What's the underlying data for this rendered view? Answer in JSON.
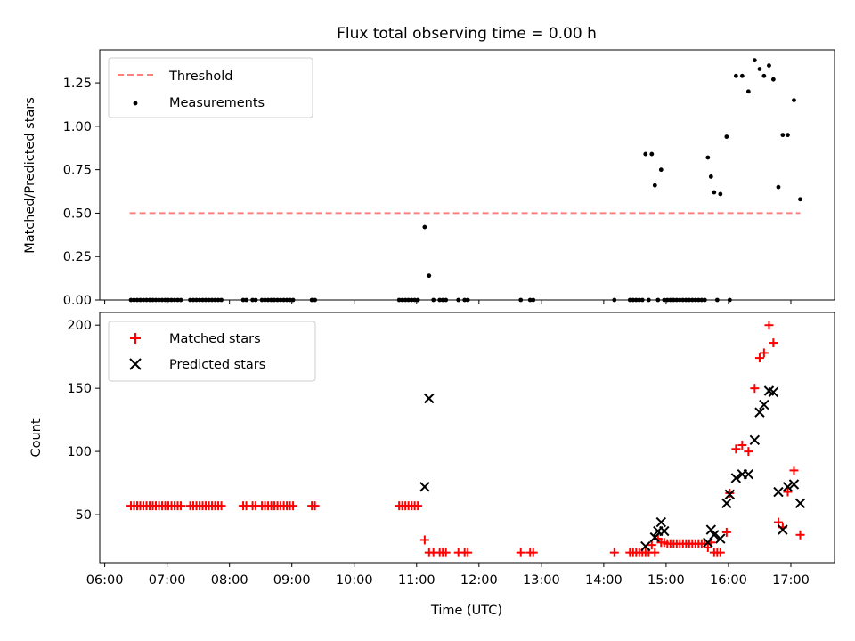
{
  "chart_data": [
    {
      "type": "scatter",
      "title": "Flux total observing time = 0.00 h",
      "ylabel": "Matched/Predicted stars",
      "xlabel": "",
      "ylim": [
        0,
        1.44
      ],
      "yticks": [
        "0.00",
        "0.25",
        "0.50",
        "0.75",
        "1.00",
        "1.25"
      ],
      "ytick_values": [
        0,
        0.25,
        0.5,
        0.75,
        1.0,
        1.25
      ],
      "legend": {
        "placement": "top-left",
        "entries": [
          "Threshold",
          "Measurements"
        ]
      },
      "grid": false,
      "threshold": {
        "name": "Threshold",
        "value": 0.5,
        "x": [
          6.4,
          17.15
        ],
        "color": "#ff7f7f",
        "style": "dashed"
      },
      "series": [
        {
          "name": "Measurements",
          "marker": "dot",
          "color": "#000000",
          "x": [
            6.42,
            6.47,
            6.52,
            6.57,
            6.62,
            6.67,
            6.72,
            6.77,
            6.82,
            6.87,
            6.92,
            6.97,
            7.02,
            7.07,
            7.12,
            7.17,
            7.22,
            7.37,
            7.42,
            7.47,
            7.52,
            7.57,
            7.62,
            7.67,
            7.72,
            7.77,
            7.82,
            7.87,
            8.22,
            8.27,
            8.37,
            8.42,
            8.52,
            8.57,
            8.62,
            8.67,
            8.72,
            8.77,
            8.82,
            8.87,
            8.92,
            8.97,
            9.02,
            9.32,
            9.37,
            10.72,
            10.77,
            10.82,
            10.87,
            10.92,
            10.97,
            11.02,
            11.13,
            11.2,
            11.27,
            11.37,
            11.42,
            11.47,
            11.67,
            11.77,
            11.82,
            12.67,
            12.82,
            12.87,
            14.17,
            14.42,
            14.47,
            14.52,
            14.57,
            14.62,
            14.67,
            14.72,
            14.77,
            14.82,
            14.87,
            14.92,
            14.97,
            15.02,
            15.07,
            15.12,
            15.17,
            15.22,
            15.27,
            15.32,
            15.37,
            15.42,
            15.47,
            15.52,
            15.57,
            15.62,
            15.67,
            15.72,
            15.77,
            15.82,
            15.87,
            15.97,
            16.02,
            16.12,
            16.22,
            16.32,
            16.42,
            16.5,
            16.57,
            16.65,
            16.72,
            16.8,
            16.87,
            16.95,
            17.05,
            17.15
          ],
          "y": [
            0,
            0,
            0,
            0,
            0,
            0,
            0,
            0,
            0,
            0,
            0,
            0,
            0,
            0,
            0,
            0,
            0,
            0,
            0,
            0,
            0,
            0,
            0,
            0,
            0,
            0,
            0,
            0,
            0,
            0,
            0,
            0,
            0,
            0,
            0,
            0,
            0,
            0,
            0,
            0,
            0,
            0,
            0,
            0,
            0,
            0,
            0,
            0,
            0,
            0,
            0,
            0,
            0.42,
            0.14,
            0,
            0,
            0,
            0,
            0,
            0,
            0,
            0,
            0,
            0,
            0,
            0,
            0,
            0,
            0,
            0,
            0.84,
            0,
            0.84,
            0.66,
            0,
            0.75,
            0,
            0,
            0,
            0,
            0,
            0,
            0,
            0,
            0,
            0,
            0,
            0,
            0,
            0,
            0.82,
            0.71,
            0.62,
            0,
            0.61,
            0.94,
            0,
            1.29,
            1.29,
            1.2,
            1.38,
            1.33,
            1.29,
            1.35,
            1.27,
            0.65,
            0.95,
            0.95,
            1.15,
            0.58
          ]
        }
      ]
    },
    {
      "type": "scatter",
      "title": "",
      "xlabel": "Time (UTC)",
      "ylabel": "Count",
      "ylim": [
        12,
        210
      ],
      "xlim": [
        5.92,
        17.7
      ],
      "xticks": [
        "06:00",
        "07:00",
        "08:00",
        "09:00",
        "10:00",
        "11:00",
        "12:00",
        "13:00",
        "14:00",
        "15:00",
        "16:00",
        "17:00"
      ],
      "xtick_values": [
        6,
        7,
        8,
        9,
        10,
        11,
        12,
        13,
        14,
        15,
        16,
        17
      ],
      "yticks": [
        "50",
        "100",
        "150",
        "200"
      ],
      "ytick_values": [
        50,
        100,
        150,
        200
      ],
      "legend": {
        "placement": "top-left",
        "entries": [
          "Matched stars",
          "Predicted stars"
        ]
      },
      "grid": false,
      "series": [
        {
          "name": "Matched stars",
          "marker": "plus",
          "color": "#ff0000",
          "x": [
            6.42,
            6.47,
            6.52,
            6.57,
            6.62,
            6.67,
            6.72,
            6.77,
            6.82,
            6.87,
            6.92,
            6.97,
            7.02,
            7.07,
            7.12,
            7.17,
            7.22,
            7.37,
            7.42,
            7.47,
            7.52,
            7.57,
            7.62,
            7.67,
            7.72,
            7.77,
            7.82,
            7.87,
            8.22,
            8.27,
            8.37,
            8.42,
            8.52,
            8.57,
            8.62,
            8.67,
            8.72,
            8.77,
            8.82,
            8.87,
            8.92,
            8.97,
            9.02,
            9.32,
            9.37,
            10.72,
            10.77,
            10.82,
            10.87,
            10.92,
            10.97,
            11.02,
            11.13,
            11.2,
            11.27,
            11.37,
            11.42,
            11.47,
            11.67,
            11.77,
            11.82,
            12.67,
            12.82,
            12.87,
            14.17,
            14.42,
            14.47,
            14.52,
            14.57,
            14.62,
            14.67,
            14.72,
            14.77,
            14.82,
            14.87,
            14.92,
            14.97,
            15.02,
            15.07,
            15.12,
            15.17,
            15.22,
            15.27,
            15.32,
            15.37,
            15.42,
            15.47,
            15.52,
            15.57,
            15.62,
            15.67,
            15.72,
            15.77,
            15.82,
            15.87,
            15.97,
            16.02,
            16.12,
            16.22,
            16.32,
            16.42,
            16.5,
            16.57,
            16.65,
            16.72,
            16.8,
            16.87,
            16.95,
            17.05,
            17.15
          ],
          "y": [
            57,
            57,
            57,
            57,
            57,
            57,
            57,
            57,
            57,
            57,
            57,
            57,
            57,
            57,
            57,
            57,
            57,
            57,
            57,
            57,
            57,
            57,
            57,
            57,
            57,
            57,
            57,
            57,
            57,
            57,
            57,
            57,
            57,
            57,
            57,
            57,
            57,
            57,
            57,
            57,
            57,
            57,
            57,
            57,
            57,
            57,
            57,
            57,
            57,
            57,
            57,
            57,
            30,
            20,
            20,
            20,
            20,
            20,
            20,
            20,
            20,
            20,
            20,
            20,
            20,
            20,
            20,
            20,
            20,
            20,
            20,
            20,
            26,
            20,
            31,
            28,
            28,
            27,
            27,
            27,
            27,
            27,
            27,
            27,
            27,
            27,
            27,
            27,
            27,
            27,
            24,
            28,
            20,
            20,
            20,
            36,
            67,
            102,
            105,
            100,
            150,
            174,
            178,
            200,
            186,
            44,
            40,
            68,
            85,
            34
          ]
        },
        {
          "name": "Predicted stars",
          "marker": "x",
          "color": "#000000",
          "x": [
            11.13,
            11.2,
            14.67,
            14.82,
            14.87,
            14.92,
            14.97,
            15.67,
            15.72,
            15.77,
            15.87,
            15.97,
            16.02,
            16.12,
            16.22,
            16.32,
            16.42,
            16.5,
            16.57,
            16.65,
            16.72,
            16.8,
            16.87,
            16.95,
            17.05,
            17.15
          ],
          "y": [
            72,
            142,
            25,
            32,
            37,
            44,
            37,
            28,
            38,
            34,
            31,
            59,
            66,
            79,
            82,
            82,
            109,
            131,
            137,
            148,
            147,
            68,
            38,
            72,
            74,
            59
          ]
        }
      ]
    }
  ]
}
